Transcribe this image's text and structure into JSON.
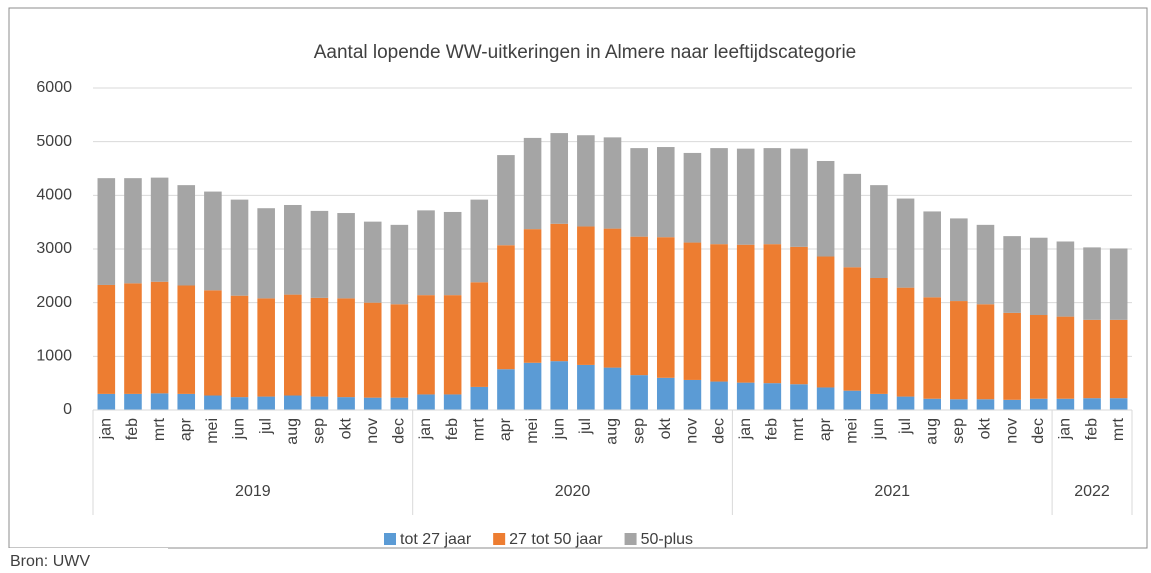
{
  "chart_data": {
    "type": "stacked_bar",
    "title": "Aantal lopende WW-uitkeringen in Almere naar leeftijdscategorie",
    "categories": [
      "jan",
      "feb",
      "mrt",
      "apr",
      "mei",
      "jun",
      "jul",
      "aug",
      "sep",
      "okt",
      "nov",
      "dec",
      "jan",
      "feb",
      "mrt",
      "apr",
      "mei",
      "jun",
      "jul",
      "aug",
      "sep",
      "okt",
      "nov",
      "dec",
      "jan",
      "feb",
      "mrt",
      "apr",
      "mei",
      "jun",
      "jul",
      "aug",
      "sep",
      "okt",
      "nov",
      "dec",
      "jan",
      "feb",
      "mrt"
    ],
    "years": [
      "2019",
      "2019",
      "2019",
      "2019",
      "2019",
      "2019",
      "2019",
      "2019",
      "2019",
      "2019",
      "2019",
      "2019",
      "2020",
      "2020",
      "2020",
      "2020",
      "2020",
      "2020",
      "2020",
      "2020",
      "2020",
      "2020",
      "2020",
      "2020",
      "2021",
      "2021",
      "2021",
      "2021",
      "2021",
      "2021",
      "2021",
      "2021",
      "2021",
      "2021",
      "2021",
      "2021",
      "2022",
      "2022",
      "2022"
    ],
    "series": [
      {
        "name": "tot 27 jaar",
        "color": "#5b9bd5",
        "values": [
          300,
          300,
          310,
          300,
          270,
          240,
          250,
          270,
          250,
          240,
          230,
          230,
          290,
          290,
          430,
          760,
          880,
          910,
          840,
          790,
          650,
          600,
          560,
          530,
          510,
          500,
          480,
          420,
          360,
          300,
          250,
          210,
          200,
          200,
          190,
          210,
          210,
          220,
          220
        ]
      },
      {
        "name": "27 tot 50 jaar",
        "color": "#ed7d31",
        "values": [
          2030,
          2060,
          2080,
          2020,
          1960,
          1890,
          1830,
          1880,
          1840,
          1840,
          1770,
          1740,
          1850,
          1850,
          1950,
          2310,
          2490,
          2560,
          2580,
          2590,
          2580,
          2620,
          2560,
          2560,
          2570,
          2590,
          2560,
          2440,
          2300,
          2160,
          2030,
          1890,
          1830,
          1770,
          1620,
          1560,
          1530,
          1460,
          1460
        ]
      },
      {
        "name": "50-plus",
        "color": "#a5a5a5",
        "values": [
          1990,
          1960,
          1940,
          1870,
          1840,
          1790,
          1680,
          1670,
          1620,
          1590,
          1510,
          1480,
          1580,
          1550,
          1540,
          1680,
          1700,
          1690,
          1700,
          1700,
          1650,
          1680,
          1670,
          1790,
          1790,
          1790,
          1830,
          1780,
          1740,
          1730,
          1660,
          1600,
          1540,
          1480,
          1430,
          1440,
          1400,
          1350,
          1330
        ]
      }
    ],
    "ylim": [
      0,
      6000
    ],
    "yticks": [
      0,
      1000,
      2000,
      3000,
      4000,
      5000,
      6000
    ],
    "grid": true,
    "legend": "bottom",
    "source": "Bron: UWV"
  }
}
